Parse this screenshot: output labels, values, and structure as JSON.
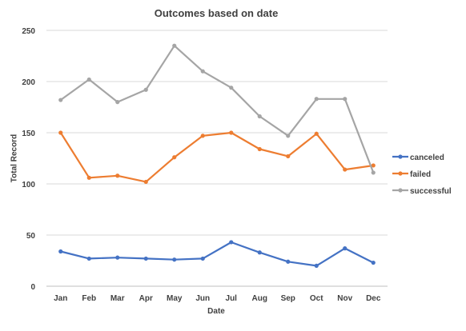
{
  "chart_data": {
    "type": "line",
    "title": "Outcomes based on date",
    "xlabel": "Date",
    "ylabel": "Total Record",
    "categories": [
      "Jan",
      "Feb",
      "Mar",
      "Apr",
      "May",
      "Jun",
      "Jul",
      "Aug",
      "Sep",
      "Oct",
      "Nov",
      "Dec"
    ],
    "ylim": [
      0,
      250
    ],
    "yticks": [
      0,
      50,
      100,
      150,
      200,
      250
    ],
    "grid": true,
    "legend_position": "right",
    "series": [
      {
        "name": "canceled",
        "color": "#4472C4",
        "values": [
          34,
          27,
          28,
          27,
          26,
          27,
          43,
          33,
          24,
          20,
          37,
          23
        ]
      },
      {
        "name": "failed",
        "color": "#ED7D31",
        "values": [
          150,
          106,
          108,
          102,
          126,
          147,
          150,
          134,
          127,
          149,
          114,
          118
        ]
      },
      {
        "name": "successful",
        "color": "#A5A5A5",
        "values": [
          182,
          202,
          180,
          192,
          235,
          210,
          194,
          166,
          147,
          183,
          183,
          111
        ]
      }
    ]
  }
}
